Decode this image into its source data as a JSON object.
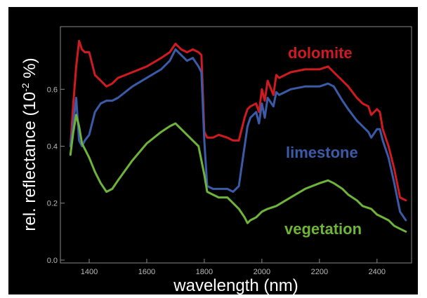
{
  "chart_data": {
    "type": "line",
    "title": "",
    "xlabel": "wavelength (nm)",
    "ylabel": "rel. reflectance (10",
    "ylabel_exponent": "-2",
    "ylabel_suffix": " %)",
    "xlim": [
      1300,
      2520
    ],
    "ylim": [
      -0.01,
      0.82
    ],
    "xticks": [
      1400,
      1600,
      1800,
      2000,
      2200,
      2400
    ],
    "xtick_labels": [
      "1400",
      "1600",
      "1800",
      "2000",
      "2200",
      "2400"
    ],
    "yticks": [
      0.0,
      0.2,
      0.4,
      0.6
    ],
    "ytick_labels": [
      "0.0",
      "0.2",
      "0.4",
      "0.6"
    ],
    "grid": false,
    "legend": "inline labels",
    "background": "#000000",
    "series": [
      {
        "name": "dolomite",
        "color": "#d01a22",
        "x": [
          1335,
          1345,
          1355,
          1365,
          1375,
          1385,
          1400,
          1420,
          1440,
          1460,
          1480,
          1500,
          1550,
          1600,
          1650,
          1680,
          1700,
          1720,
          1740,
          1760,
          1780,
          1790,
          1800,
          1810,
          1830,
          1850,
          1880,
          1900,
          1920,
          1940,
          1950,
          1960,
          1980,
          1990,
          2000,
          2010,
          2020,
          2040,
          2050,
          2060,
          2080,
          2100,
          2150,
          2200,
          2230,
          2250,
          2280,
          2300,
          2330,
          2350,
          2370,
          2380,
          2400,
          2410,
          2420,
          2440,
          2460,
          2480,
          2500
        ],
        "y": [
          0.4,
          0.55,
          0.68,
          0.77,
          0.74,
          0.73,
          0.73,
          0.65,
          0.63,
          0.61,
          0.62,
          0.64,
          0.66,
          0.68,
          0.71,
          0.73,
          0.76,
          0.74,
          0.73,
          0.74,
          0.73,
          0.72,
          0.45,
          0.43,
          0.43,
          0.44,
          0.43,
          0.42,
          0.42,
          0.5,
          0.53,
          0.54,
          0.55,
          0.52,
          0.6,
          0.56,
          0.63,
          0.58,
          0.65,
          0.64,
          0.65,
          0.66,
          0.67,
          0.67,
          0.68,
          0.66,
          0.63,
          0.61,
          0.57,
          0.55,
          0.54,
          0.51,
          0.53,
          0.52,
          0.46,
          0.4,
          0.32,
          0.22,
          0.21
        ]
      },
      {
        "name": "limestone",
        "color": "#3b5ba8",
        "x": [
          1335,
          1345,
          1355,
          1365,
          1375,
          1385,
          1400,
          1420,
          1440,
          1460,
          1480,
          1500,
          1550,
          1600,
          1650,
          1680,
          1700,
          1720,
          1740,
          1760,
          1780,
          1790,
          1800,
          1810,
          1830,
          1850,
          1880,
          1900,
          1920,
          1940,
          1950,
          1960,
          1980,
          1990,
          2000,
          2010,
          2020,
          2040,
          2050,
          2060,
          2080,
          2100,
          2150,
          2200,
          2230,
          2250,
          2280,
          2300,
          2330,
          2350,
          2370,
          2380,
          2400,
          2410,
          2420,
          2440,
          2460,
          2480,
          2500
        ],
        "y": [
          0.4,
          0.48,
          0.57,
          0.42,
          0.4,
          0.42,
          0.44,
          0.52,
          0.55,
          0.56,
          0.56,
          0.57,
          0.61,
          0.64,
          0.67,
          0.7,
          0.74,
          0.72,
          0.7,
          0.71,
          0.68,
          0.66,
          0.42,
          0.26,
          0.25,
          0.25,
          0.25,
          0.24,
          0.26,
          0.4,
          0.47,
          0.5,
          0.52,
          0.48,
          0.55,
          0.5,
          0.57,
          0.54,
          0.59,
          0.58,
          0.59,
          0.6,
          0.61,
          0.61,
          0.62,
          0.61,
          0.56,
          0.53,
          0.49,
          0.47,
          0.45,
          0.43,
          0.46,
          0.46,
          0.42,
          0.36,
          0.27,
          0.17,
          0.14
        ]
      },
      {
        "name": "vegetation",
        "color": "#6fb43a",
        "x": [
          1335,
          1345,
          1355,
          1365,
          1375,
          1385,
          1400,
          1420,
          1440,
          1460,
          1480,
          1500,
          1550,
          1600,
          1650,
          1680,
          1700,
          1720,
          1740,
          1760,
          1780,
          1790,
          1800,
          1810,
          1830,
          1850,
          1880,
          1900,
          1920,
          1940,
          1950,
          1960,
          1980,
          2000,
          2020,
          2050,
          2100,
          2150,
          2200,
          2230,
          2250,
          2280,
          2300,
          2330,
          2350,
          2380,
          2400,
          2420,
          2440,
          2460,
          2480,
          2500
        ],
        "y": [
          0.37,
          0.45,
          0.51,
          0.47,
          0.41,
          0.39,
          0.36,
          0.31,
          0.27,
          0.24,
          0.25,
          0.28,
          0.35,
          0.41,
          0.45,
          0.47,
          0.48,
          0.46,
          0.44,
          0.42,
          0.4,
          0.35,
          0.3,
          0.24,
          0.23,
          0.22,
          0.22,
          0.2,
          0.18,
          0.15,
          0.13,
          0.14,
          0.15,
          0.17,
          0.18,
          0.19,
          0.22,
          0.25,
          0.27,
          0.28,
          0.27,
          0.25,
          0.23,
          0.21,
          0.19,
          0.18,
          0.16,
          0.15,
          0.14,
          0.12,
          0.11,
          0.1
        ]
      }
    ]
  }
}
